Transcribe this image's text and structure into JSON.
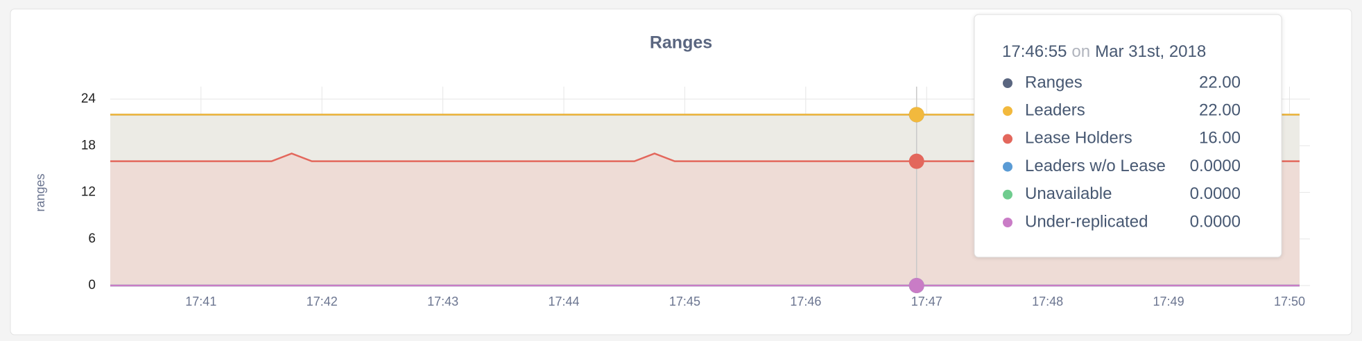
{
  "chart_data": {
    "type": "line",
    "title": "Ranges",
    "ylabel": "ranges",
    "x": [
      "17:40:15",
      "17:41:35",
      "17:41:45",
      "17:41:55",
      "17:44:35",
      "17:44:45",
      "17:44:55",
      "17:46:55",
      "17:50:05"
    ],
    "xlim": [
      "17:40:15",
      "17:50:05"
    ],
    "xticks": [
      "17:41",
      "17:42",
      "17:43",
      "17:44",
      "17:45",
      "17:46",
      "17:47",
      "17:48",
      "17:49",
      "17:50"
    ],
    "ylim": [
      0,
      24
    ],
    "yticks": [
      0,
      6,
      12,
      18,
      24
    ],
    "grid": true,
    "series": [
      {
        "name": "Ranges",
        "color": "#5a6680",
        "fill": "#ecebe5",
        "values": [
          22,
          22,
          22,
          22,
          22,
          22,
          22,
          22,
          22
        ]
      },
      {
        "name": "Leaders",
        "color": "#f2b93d",
        "values": [
          22,
          22,
          22,
          22,
          22,
          22,
          22,
          22,
          22
        ]
      },
      {
        "name": "Lease Holders",
        "color": "#e3675c",
        "fill": "#eedcd6",
        "values": [
          16,
          16,
          17,
          16,
          16,
          17,
          16,
          16,
          16
        ]
      },
      {
        "name": "Leaders w/o Lease",
        "color": "#5a9bd5",
        "values": [
          0,
          0,
          0,
          0,
          0,
          0,
          0,
          0,
          0
        ]
      },
      {
        "name": "Unavailable",
        "color": "#6fcc8e",
        "values": [
          0,
          0,
          0,
          0,
          0,
          0,
          0,
          0,
          0
        ]
      },
      {
        "name": "Under-replicated",
        "color": "#c97cc6",
        "values": [
          0,
          0,
          0,
          0,
          0,
          0,
          0,
          0,
          0
        ]
      }
    ],
    "tooltip": {
      "time": "17:46:55",
      "on": "on",
      "date": "Mar 31st, 2018",
      "index": 7,
      "values": [
        22,
        22,
        16,
        0,
        0,
        0
      ],
      "value_labels": [
        "22.00",
        "22.00",
        "16.00",
        "0.0000",
        "0.0000",
        "0.0000"
      ]
    }
  }
}
